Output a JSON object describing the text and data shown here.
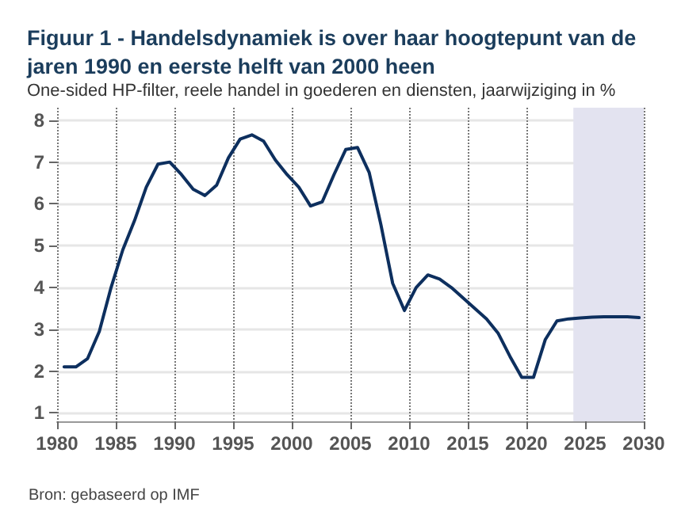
{
  "chart_data": {
    "type": "line",
    "title": "Figuur 1 - Handelsdynamiek is over haar hoogtepunt van de jaren 1990 en eerste helft van 2000 heen",
    "subtitle": "One-sided HP-filter, reele handel in goederen en diensten, jaarwijziging in %",
    "annotations": [
      "Bron: gebaseerd op IMF"
    ],
    "x": [
      1980.6,
      1981.6,
      1982.6,
      1983.6,
      1984.6,
      1985.6,
      1986.6,
      1987.6,
      1988.6,
      1989.6,
      1990.6,
      1991.6,
      1992.6,
      1993.6,
      1994.6,
      1995.6,
      1996.6,
      1997.6,
      1998.6,
      1999.6,
      2000.6,
      2001.6,
      2002.6,
      2003.6,
      2004.6,
      2005.6,
      2006.6,
      2007.6,
      2008.6,
      2009.6,
      2010.6,
      2011.6,
      2012.6,
      2013.6,
      2014.6,
      2015.6,
      2016.6,
      2017.6,
      2018.6,
      2019.6,
      2020.6,
      2021.6,
      2022.6,
      2023.6,
      2024.6,
      2025.6,
      2026.6,
      2027.6,
      2028.6,
      2029.6
    ],
    "series": [
      {
        "color": "#0d2f5e",
        "values": [
          2.1,
          2.1,
          2.3,
          2.95,
          4.0,
          4.9,
          5.6,
          6.4,
          6.95,
          7.0,
          6.7,
          6.35,
          6.2,
          6.45,
          7.1,
          7.55,
          7.65,
          7.5,
          7.05,
          6.7,
          6.4,
          5.95,
          6.05,
          6.7,
          7.3,
          7.35,
          6.75,
          5.5,
          4.1,
          3.45,
          4.0,
          4.3,
          4.2,
          4.0,
          3.75,
          3.5,
          3.25,
          2.9,
          2.35,
          1.85,
          1.85,
          2.75,
          3.2,
          3.25,
          3.27,
          3.29,
          3.3,
          3.3,
          3.3,
          3.28
        ]
      }
    ],
    "xlim": [
      1980,
      2030
    ],
    "xticks": [
      1980,
      1985,
      1990,
      1995,
      2000,
      2005,
      2010,
      2015,
      2020,
      2025,
      2030
    ],
    "ylim": [
      0.8,
      8.3
    ],
    "yticks": [
      1,
      2,
      3,
      4,
      5,
      6,
      7,
      8
    ],
    "bands": [
      {
        "axis": "x",
        "from": 2024,
        "to": 2030,
        "color": "#e3e3f0"
      }
    ],
    "grid": true,
    "marker": "none",
    "line_style": "solid"
  }
}
